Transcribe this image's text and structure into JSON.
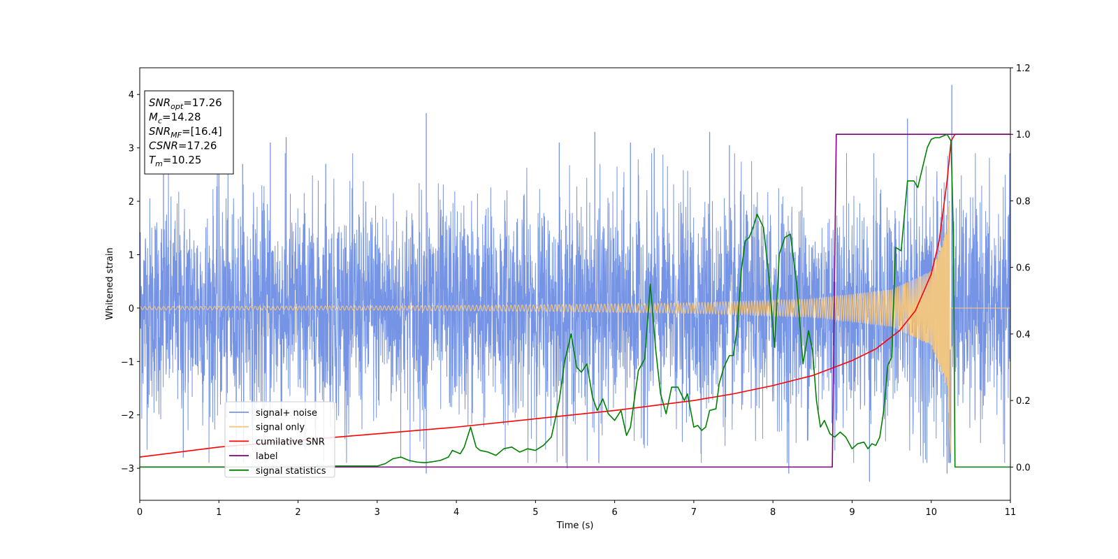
{
  "chart_data": {
    "type": "line",
    "xlabel": "Time (s)",
    "ylabel": "Whitened strain",
    "xlim": [
      0,
      11
    ],
    "ylim": [
      -3.6,
      4.5
    ],
    "y2lim": [
      -0.1,
      1.2
    ],
    "grid": false,
    "legend_position": "lower left (inset)",
    "xticks": [
      "0",
      "1",
      "2",
      "3",
      "4",
      "5",
      "6",
      "7",
      "8",
      "9",
      "10",
      "11"
    ],
    "yticks": [
      "4",
      "3",
      "2",
      "1",
      "0",
      "−1",
      "−2",
      "−3"
    ],
    "y2ticks": [
      "1.2",
      "1.0",
      "0.8",
      "0.6",
      "0.4",
      "0.2",
      "0.0"
    ],
    "annotations": [
      {
        "base": "SNR",
        "sub": "opt",
        "value": "=17.26"
      },
      {
        "base": "M",
        "sub": "c",
        "value": "=14.28"
      },
      {
        "base": "SNR",
        "sub": "MF",
        "value": "=[16.4]"
      },
      {
        "base": "CSNR",
        "sub": "",
        "value": "=17.26"
      },
      {
        "base": "T",
        "sub": "m",
        "value": "=10.25"
      }
    ],
    "legend": [
      {
        "label": "signal+ noise",
        "color": "#7694e6"
      },
      {
        "label": "signal only",
        "color": "#f5c77e"
      },
      {
        "label": "cumilative SNR",
        "color": "#ff0000"
      },
      {
        "label": "label",
        "color": "#800080"
      },
      {
        "label": "signal statistics",
        "color": "#008000"
      }
    ],
    "series": [
      {
        "name": "signal+ noise",
        "axis": "left",
        "color": "#7694e6",
        "description": "dense whitened noise, approx. uniform amplitude ±2.5 with spikes to ±3.6, plus chirp",
        "noise_sigma": 1.0,
        "peak_points": [
          [
            0.3,
            2.7
          ],
          [
            0.55,
            -2.8
          ],
          [
            1.0,
            2.9
          ],
          [
            1.3,
            2.7
          ],
          [
            1.65,
            3.1
          ],
          [
            1.85,
            3.2
          ],
          [
            2.35,
            2.7
          ],
          [
            3.62,
            3.65
          ],
          [
            3.62,
            -3.1
          ],
          [
            5.3,
            3.1
          ],
          [
            5.4,
            -3.0
          ],
          [
            5.75,
            3.3
          ],
          [
            5.8,
            -2.9
          ],
          [
            6.2,
            3.1
          ],
          [
            6.5,
            3.0
          ],
          [
            7.2,
            3.3
          ],
          [
            7.45,
            3.05
          ],
          [
            8.2,
            -3.1
          ],
          [
            9.22,
            -3.25
          ],
          [
            9.7,
            3.55
          ],
          [
            10.26,
            4.18
          ],
          [
            10.2,
            -3.1
          ]
        ]
      },
      {
        "name": "signal only",
        "axis": "left",
        "color": "#f5c77e",
        "description": "chirp signal, amplitude grows toward merger at T_m",
        "amplitude_points": [
          [
            0,
            0.03
          ],
          [
            3,
            0.04
          ],
          [
            5,
            0.06
          ],
          [
            7,
            0.1
          ],
          [
            8.5,
            0.17
          ],
          [
            9.5,
            0.35
          ],
          [
            10.0,
            0.7
          ],
          [
            10.2,
            1.5
          ],
          [
            10.25,
            2.9
          ]
        ],
        "merger_time": 10.25
      },
      {
        "name": "cumilative SNR",
        "axis": "right",
        "color": "#ff0000",
        "x": [
          0,
          1,
          2,
          3,
          4,
          5,
          6,
          7,
          7.5,
          8,
          8.5,
          9,
          9.3,
          9.6,
          9.8,
          10.0,
          10.1,
          10.2,
          10.25,
          10.3,
          11
        ],
        "y": [
          0.03,
          0.06,
          0.08,
          0.1,
          0.12,
          0.145,
          0.17,
          0.2,
          0.22,
          0.245,
          0.275,
          0.32,
          0.355,
          0.41,
          0.47,
          0.58,
          0.68,
          0.86,
          0.98,
          1.0,
          1.0
        ]
      },
      {
        "name": "label",
        "axis": "right",
        "color": "#800080",
        "x": [
          0,
          8.75,
          8.8,
          10.26,
          10.28,
          11
        ],
        "y": [
          0,
          0,
          1,
          1,
          1,
          1
        ]
      },
      {
        "name": "signal statistics",
        "axis": "right",
        "color": "#008000",
        "x": [
          0,
          0.5,
          1,
          1.5,
          2,
          2.5,
          2.8,
          3.0,
          3.1,
          3.2,
          3.3,
          3.4,
          3.5,
          3.6,
          3.7,
          3.8,
          3.9,
          3.95,
          4.05,
          4.1,
          4.18,
          4.25,
          4.3,
          4.4,
          4.5,
          4.6,
          4.7,
          4.8,
          4.9,
          5.0,
          5.1,
          5.2,
          5.3,
          5.37,
          5.45,
          5.52,
          5.58,
          5.65,
          5.72,
          5.78,
          5.85,
          5.92,
          6.0,
          6.08,
          6.15,
          6.2,
          6.3,
          6.38,
          6.45,
          6.52,
          6.58,
          6.65,
          6.72,
          6.8,
          6.88,
          6.92,
          7.0,
          7.05,
          7.1,
          7.15,
          7.2,
          7.28,
          7.32,
          7.38,
          7.45,
          7.5,
          7.55,
          7.6,
          7.65,
          7.7,
          7.75,
          7.8,
          7.88,
          7.95,
          8.02,
          8.08,
          8.15,
          8.22,
          8.3,
          8.38,
          8.45,
          8.5,
          8.55,
          8.6,
          8.65,
          8.72,
          8.78,
          8.85,
          8.92,
          9.0,
          9.07,
          9.15,
          9.2,
          9.25,
          9.3,
          9.35,
          9.4,
          9.45,
          9.5,
          9.55,
          9.62,
          9.7,
          9.78,
          9.83,
          9.88,
          9.95,
          10.0,
          10.05,
          10.1,
          10.15,
          10.2,
          10.25,
          10.28,
          10.3,
          10.35,
          11
        ],
        "y": [
          0,
          0,
          0,
          0,
          0,
          0.003,
          0.003,
          0.003,
          0.01,
          0.025,
          0.03,
          0.02,
          0.015,
          0.013,
          0.016,
          0.02,
          0.03,
          0.05,
          0.04,
          0.06,
          0.12,
          0.06,
          0.05,
          0.045,
          0.035,
          0.055,
          0.06,
          0.045,
          0.055,
          0.05,
          0.065,
          0.09,
          0.2,
          0.32,
          0.4,
          0.3,
          0.285,
          0.31,
          0.21,
          0.17,
          0.205,
          0.16,
          0.14,
          0.17,
          0.095,
          0.12,
          0.29,
          0.325,
          0.55,
          0.35,
          0.22,
          0.16,
          0.24,
          0.24,
          0.2,
          0.22,
          0.12,
          0.125,
          0.11,
          0.12,
          0.17,
          0.175,
          0.25,
          0.3,
          0.335,
          0.335,
          0.42,
          0.59,
          0.68,
          0.69,
          0.72,
          0.76,
          0.72,
          0.57,
          0.36,
          0.64,
          0.69,
          0.7,
          0.55,
          0.31,
          0.41,
          0.35,
          0.2,
          0.12,
          0.14,
          0.1,
          0.09,
          0.105,
          0.09,
          0.055,
          0.07,
          0.075,
          0.055,
          0.07,
          0.065,
          0.09,
          0.17,
          0.305,
          0.33,
          0.66,
          0.65,
          0.86,
          0.86,
          0.84,
          0.89,
          0.96,
          0.985,
          0.99,
          0.99,
          0.995,
          1.0,
          0.98,
          0.7,
          0.0,
          0.0,
          0.0
        ]
      }
    ]
  }
}
